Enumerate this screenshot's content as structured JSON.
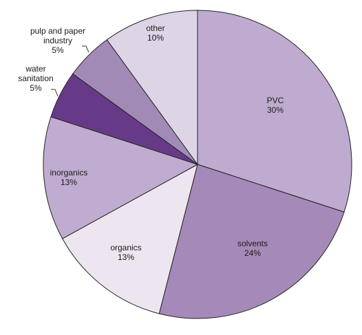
{
  "chart_data": {
    "type": "pie",
    "slices": [
      {
        "name_lines": [
          "PVC"
        ],
        "value": 30,
        "label": "30%",
        "color": "#beabcf"
      },
      {
        "name_lines": [
          "solvents"
        ],
        "value": 24,
        "label": "24%",
        "color": "#a589b8"
      },
      {
        "name_lines": [
          "organics"
        ],
        "value": 13,
        "label": "13%",
        "color": "#ede6f0"
      },
      {
        "name_lines": [
          "inorganics"
        ],
        "value": 13,
        "label": "13%",
        "color": "#c0acd0"
      },
      {
        "name_lines": [
          "water",
          "sanitation"
        ],
        "value": 5,
        "label": "5%",
        "color": "#673a88"
      },
      {
        "name_lines": [
          "pulp and paper",
          "industry"
        ],
        "value": 5,
        "label": "5%",
        "color": "#a28ab6"
      },
      {
        "name_lines": [
          "other"
        ],
        "value": 10,
        "label": "10%",
        "color": "#ddd4e6"
      }
    ],
    "start_direction": "top",
    "direction": "clockwise"
  }
}
